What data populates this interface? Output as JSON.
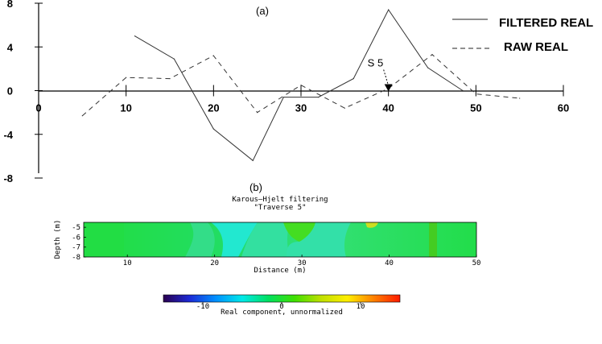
{
  "chart_data": [
    {
      "type": "line",
      "panel_label": "(a)",
      "x_ticks": [
        0,
        10,
        20,
        30,
        40,
        50,
        60
      ],
      "y_ticks": [
        8,
        4,
        0,
        -4,
        -8
      ],
      "xlim": [
        0,
        60
      ],
      "ylim": [
        -8,
        8
      ],
      "legend_position": "top-right",
      "series": [
        {
          "name": "FILTERED REAL",
          "style": "solid",
          "x": [
            11,
            15.5,
            20,
            24.5,
            28,
            32,
            36,
            40,
            44.5,
            48.5
          ],
          "y": [
            5,
            2.9,
            -3.5,
            -6.4,
            -0.6,
            -0.6,
            1.1,
            7.4,
            2.1,
            0
          ]
        },
        {
          "name": "RAW REAL",
          "style": "dashed",
          "x": [
            5,
            10,
            15,
            20,
            25,
            30,
            35,
            40,
            45,
            50,
            55
          ],
          "y": [
            -2.3,
            1.2,
            1.1,
            3.2,
            -2,
            0.5,
            -1.6,
            0.2,
            3.3,
            -0.3,
            -0.7
          ]
        }
      ],
      "annotations": [
        {
          "text": "S 5",
          "x": 40,
          "y": 0
        }
      ]
    },
    {
      "type": "heatmap",
      "panel_label": "(b)",
      "title": "Karous–Hjelt filtering",
      "subtitle": "\"Traverse 5\"",
      "xlabel": "Distance (m)",
      "ylabel": "Depth (m)",
      "x_ticks": [
        10,
        20,
        30,
        40,
        50
      ],
      "y_ticks": [
        -5,
        -6,
        -7,
        -8
      ],
      "xlim": [
        5,
        50
      ],
      "ylim": [
        -8,
        -4.5
      ],
      "colorbar": {
        "label": "Real component, unnormalized",
        "ticks": [
          -10,
          0,
          10
        ],
        "range": [
          -15,
          15
        ],
        "colors": [
          "#2a0050",
          "#1c2ad6",
          "#0090ff",
          "#00e8e8",
          "#00e060",
          "#40e000",
          "#c0e000",
          "#ffee00",
          "#ff8000",
          "#ff1a00"
        ]
      }
    }
  ]
}
